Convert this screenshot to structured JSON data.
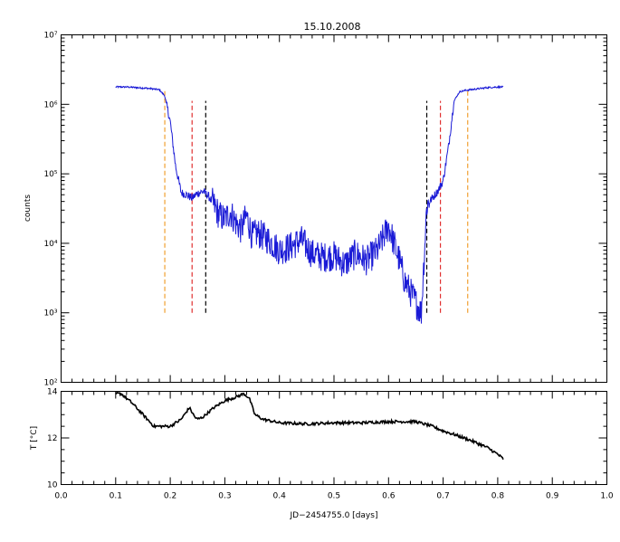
{
  "title": "15.10.2008",
  "colors": {
    "counts": "#1a1ad6",
    "temp": "#000000",
    "orange": "#f0a030",
    "red": "#e03030",
    "black": "#000000"
  },
  "chart_data": [
    {
      "type": "line",
      "name": "counts",
      "title": "15.10.2008",
      "ylabel": "counts",
      "yscale": "log",
      "xlim": [
        0.0,
        1.0
      ],
      "ylim_log10": [
        2,
        7
      ],
      "ytick_labels": [
        "10²",
        "10³",
        "10⁴",
        "10⁵",
        "10⁶",
        "10⁷"
      ],
      "x": [
        0.1,
        0.12,
        0.14,
        0.16,
        0.18,
        0.19,
        0.2,
        0.21,
        0.22,
        0.23,
        0.24,
        0.25,
        0.26,
        0.27,
        0.28,
        0.29,
        0.3,
        0.31,
        0.32,
        0.33,
        0.34,
        0.35,
        0.36,
        0.38,
        0.4,
        0.42,
        0.44,
        0.46,
        0.48,
        0.5,
        0.52,
        0.54,
        0.56,
        0.58,
        0.6,
        0.62,
        0.63,
        0.64,
        0.65,
        0.66,
        0.67,
        0.68,
        0.69,
        0.7,
        0.71,
        0.72,
        0.73,
        0.74,
        0.76,
        0.78,
        0.8,
        0.81
      ],
      "log10_y": [
        6.25,
        6.25,
        6.24,
        6.23,
        6.21,
        6.12,
        5.75,
        5.1,
        4.73,
        4.7,
        4.65,
        4.72,
        4.75,
        4.68,
        4.55,
        4.4,
        4.35,
        4.45,
        4.3,
        4.2,
        4.4,
        4.1,
        4.15,
        4.05,
        3.9,
        3.95,
        4.05,
        3.85,
        3.8,
        3.82,
        3.7,
        3.85,
        3.75,
        3.9,
        4.25,
        3.75,
        3.45,
        3.3,
        3.15,
        3.0,
        4.55,
        4.65,
        4.75,
        4.9,
        5.4,
        6.05,
        6.18,
        6.2,
        6.22,
        6.24,
        6.25,
        6.25
      ],
      "vlines": [
        {
          "x": 0.19,
          "color": "orange",
          "from_log10": 3.0,
          "to_log10": 6.2
        },
        {
          "x": 0.24,
          "color": "red",
          "from_log10": 3.0,
          "to_log10": 6.05
        },
        {
          "x": 0.265,
          "color": "black",
          "from_log10": 3.0,
          "to_log10": 6.05
        },
        {
          "x": 0.67,
          "color": "black",
          "from_log10": 3.0,
          "to_log10": 6.05
        },
        {
          "x": 0.695,
          "color": "red",
          "from_log10": 3.0,
          "to_log10": 6.05
        },
        {
          "x": 0.745,
          "color": "orange",
          "from_log10": 3.0,
          "to_log10": 6.2
        }
      ]
    },
    {
      "type": "line",
      "name": "temperature",
      "ylabel": "T [°C]",
      "xlabel": "JD−2454755.0 [days]",
      "xlim": [
        0.0,
        1.0
      ],
      "ylim": [
        10,
        14
      ],
      "yticks": [
        10,
        12,
        14
      ],
      "ytick_labels": [
        "10",
        "12",
        "14"
      ],
      "xticks": [
        0.0,
        0.1,
        0.2,
        0.3,
        0.4,
        0.5,
        0.6,
        0.7,
        0.8,
        0.9,
        1.0
      ],
      "xtick_labels": [
        "0.0",
        "0.1",
        "0.2",
        "0.3",
        "0.4",
        "0.5",
        "0.6",
        "0.7",
        "0.8",
        "0.9",
        "1.0"
      ],
      "x": [
        0.1,
        0.11,
        0.13,
        0.15,
        0.17,
        0.2,
        0.22,
        0.235,
        0.245,
        0.25,
        0.26,
        0.28,
        0.3,
        0.32,
        0.335,
        0.345,
        0.355,
        0.37,
        0.4,
        0.45,
        0.5,
        0.55,
        0.6,
        0.65,
        0.68,
        0.7,
        0.72,
        0.75,
        0.78,
        0.8,
        0.81
      ],
      "y": [
        13.9,
        13.9,
        13.5,
        13.0,
        12.5,
        12.5,
        12.8,
        13.3,
        12.9,
        12.8,
        12.9,
        13.3,
        13.6,
        13.75,
        13.9,
        13.7,
        13.0,
        12.8,
        12.65,
        12.6,
        12.65,
        12.65,
        12.7,
        12.7,
        12.5,
        12.3,
        12.15,
        11.9,
        11.6,
        11.3,
        11.1
      ]
    }
  ]
}
